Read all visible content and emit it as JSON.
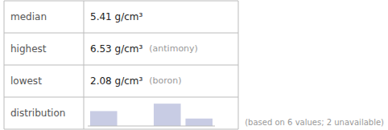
{
  "chart_data": {
    "type": "bar",
    "categories": [
      null,
      null,
      null,
      null
    ],
    "values": [
      2,
      0,
      3,
      1
    ],
    "color": "#c8cce4",
    "ylim": [
      0,
      3.45
    ],
    "tick_labels": false,
    "annotations": [
      {
        "label": "median",
        "value": "5.41 g/cm³"
      },
      {
        "label": "highest",
        "value": "6.53 g/cm³",
        "note": "(antimony)"
      },
      {
        "label": "lowest",
        "value": "2.08 g/cm³",
        "note": "(boron)"
      },
      {
        "label": "distribution"
      }
    ],
    "footer": "(based on 6 values; 2 unavailable)"
  }
}
